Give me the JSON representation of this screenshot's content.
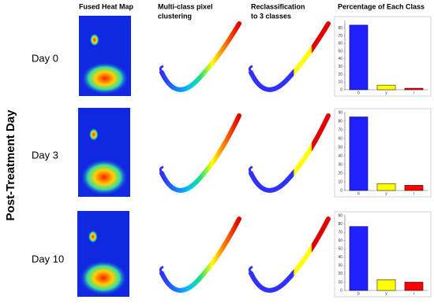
{
  "figure": {
    "y_label": "Post-Treatment Day",
    "column_headers": [
      [
        "Fused Heat Map"
      ],
      [
        "Multi-class pixel",
        "clustering"
      ],
      [
        "Reclassification",
        "to 3 classes"
      ],
      [
        "Percentage of Each Class"
      ]
    ],
    "row_labels": [
      "Day 0",
      "Day 3",
      "Day 10"
    ]
  },
  "chart_data": [
    {
      "type": "bar",
      "categories": [
        "b",
        "y",
        "r"
      ],
      "values": [
        84,
        6,
        2
      ],
      "colors": [
        "#2020ff",
        "#ffff00",
        "#ff0000"
      ],
      "ylim": [
        0,
        90
      ],
      "yticks": [
        0,
        10,
        20,
        30,
        40,
        50,
        60,
        70,
        80
      ]
    },
    {
      "type": "bar",
      "categories": [
        "b",
        "y",
        "r"
      ],
      "values": [
        85,
        8,
        6
      ],
      "colors": [
        "#2020ff",
        "#ffff00",
        "#ff0000"
      ],
      "ylim": [
        0,
        90
      ],
      "yticks": [
        0,
        10,
        20,
        30,
        40,
        50,
        60,
        70,
        80,
        90
      ]
    },
    {
      "type": "bar",
      "categories": [
        "b",
        "y",
        "r"
      ],
      "values": [
        77,
        13,
        10
      ],
      "colors": [
        "#2020ff",
        "#ffff00",
        "#ff0000"
      ],
      "ylim": [
        0,
        90
      ],
      "yticks": [
        0,
        10,
        20,
        30,
        40,
        50,
        60,
        70,
        80,
        90
      ]
    }
  ]
}
